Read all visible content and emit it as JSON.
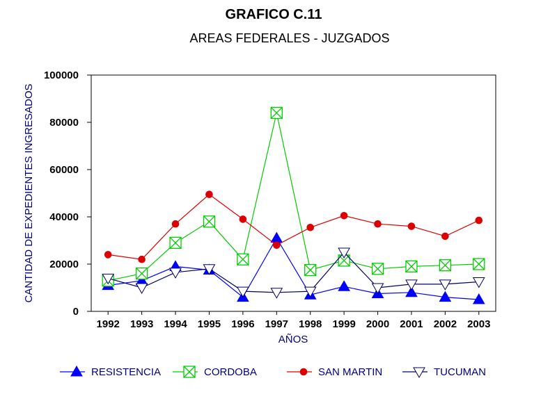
{
  "chart_data": {
    "type": "line",
    "title": "GRAFICO C.11",
    "subtitle": "AREAS FEDERALES  -  JUZGADOS",
    "xlabel": "AÑOS",
    "ylabel": "CANTIDAD DE EXPEDIENTES INGRESADOS",
    "x": [
      "1992",
      "1993",
      "1994",
      "1995",
      "1996",
      "1997",
      "1998",
      "1999",
      "2000",
      "2001",
      "2002",
      "2003"
    ],
    "ylim": [
      0,
      100000
    ],
    "yticks": [
      "0",
      "20000",
      "40000",
      "60000",
      "80000",
      "100000"
    ],
    "grid": false,
    "legend_position": "bottom",
    "series": [
      {
        "name": "RESISTENCIA",
        "color": "#0000ff",
        "marker": "triangle-up-filled",
        "values": [
          11000,
          13000,
          19000,
          17500,
          6000,
          31000,
          7000,
          10500,
          7500,
          8000,
          6000,
          5000
        ]
      },
      {
        "name": "CORDOBA",
        "color": "#00cc00",
        "marker": "square-x",
        "values": [
          13000,
          16000,
          29000,
          38000,
          22000,
          84000,
          17500,
          21500,
          18000,
          19000,
          19500,
          20000
        ]
      },
      {
        "name": "SAN MARTIN",
        "color": "#dd0000",
        "marker": "circle-filled",
        "values": [
          24000,
          22000,
          37000,
          49500,
          39000,
          28000,
          35500,
          40500,
          37000,
          36000,
          31800,
          38500
        ]
      },
      {
        "name": "TUCUMAN",
        "color": "#000066",
        "marker": "triangle-down-open",
        "values": [
          14000,
          10000,
          16500,
          18000,
          8500,
          8000,
          8500,
          25000,
          10000,
          11500,
          11500,
          12500
        ]
      }
    ]
  }
}
